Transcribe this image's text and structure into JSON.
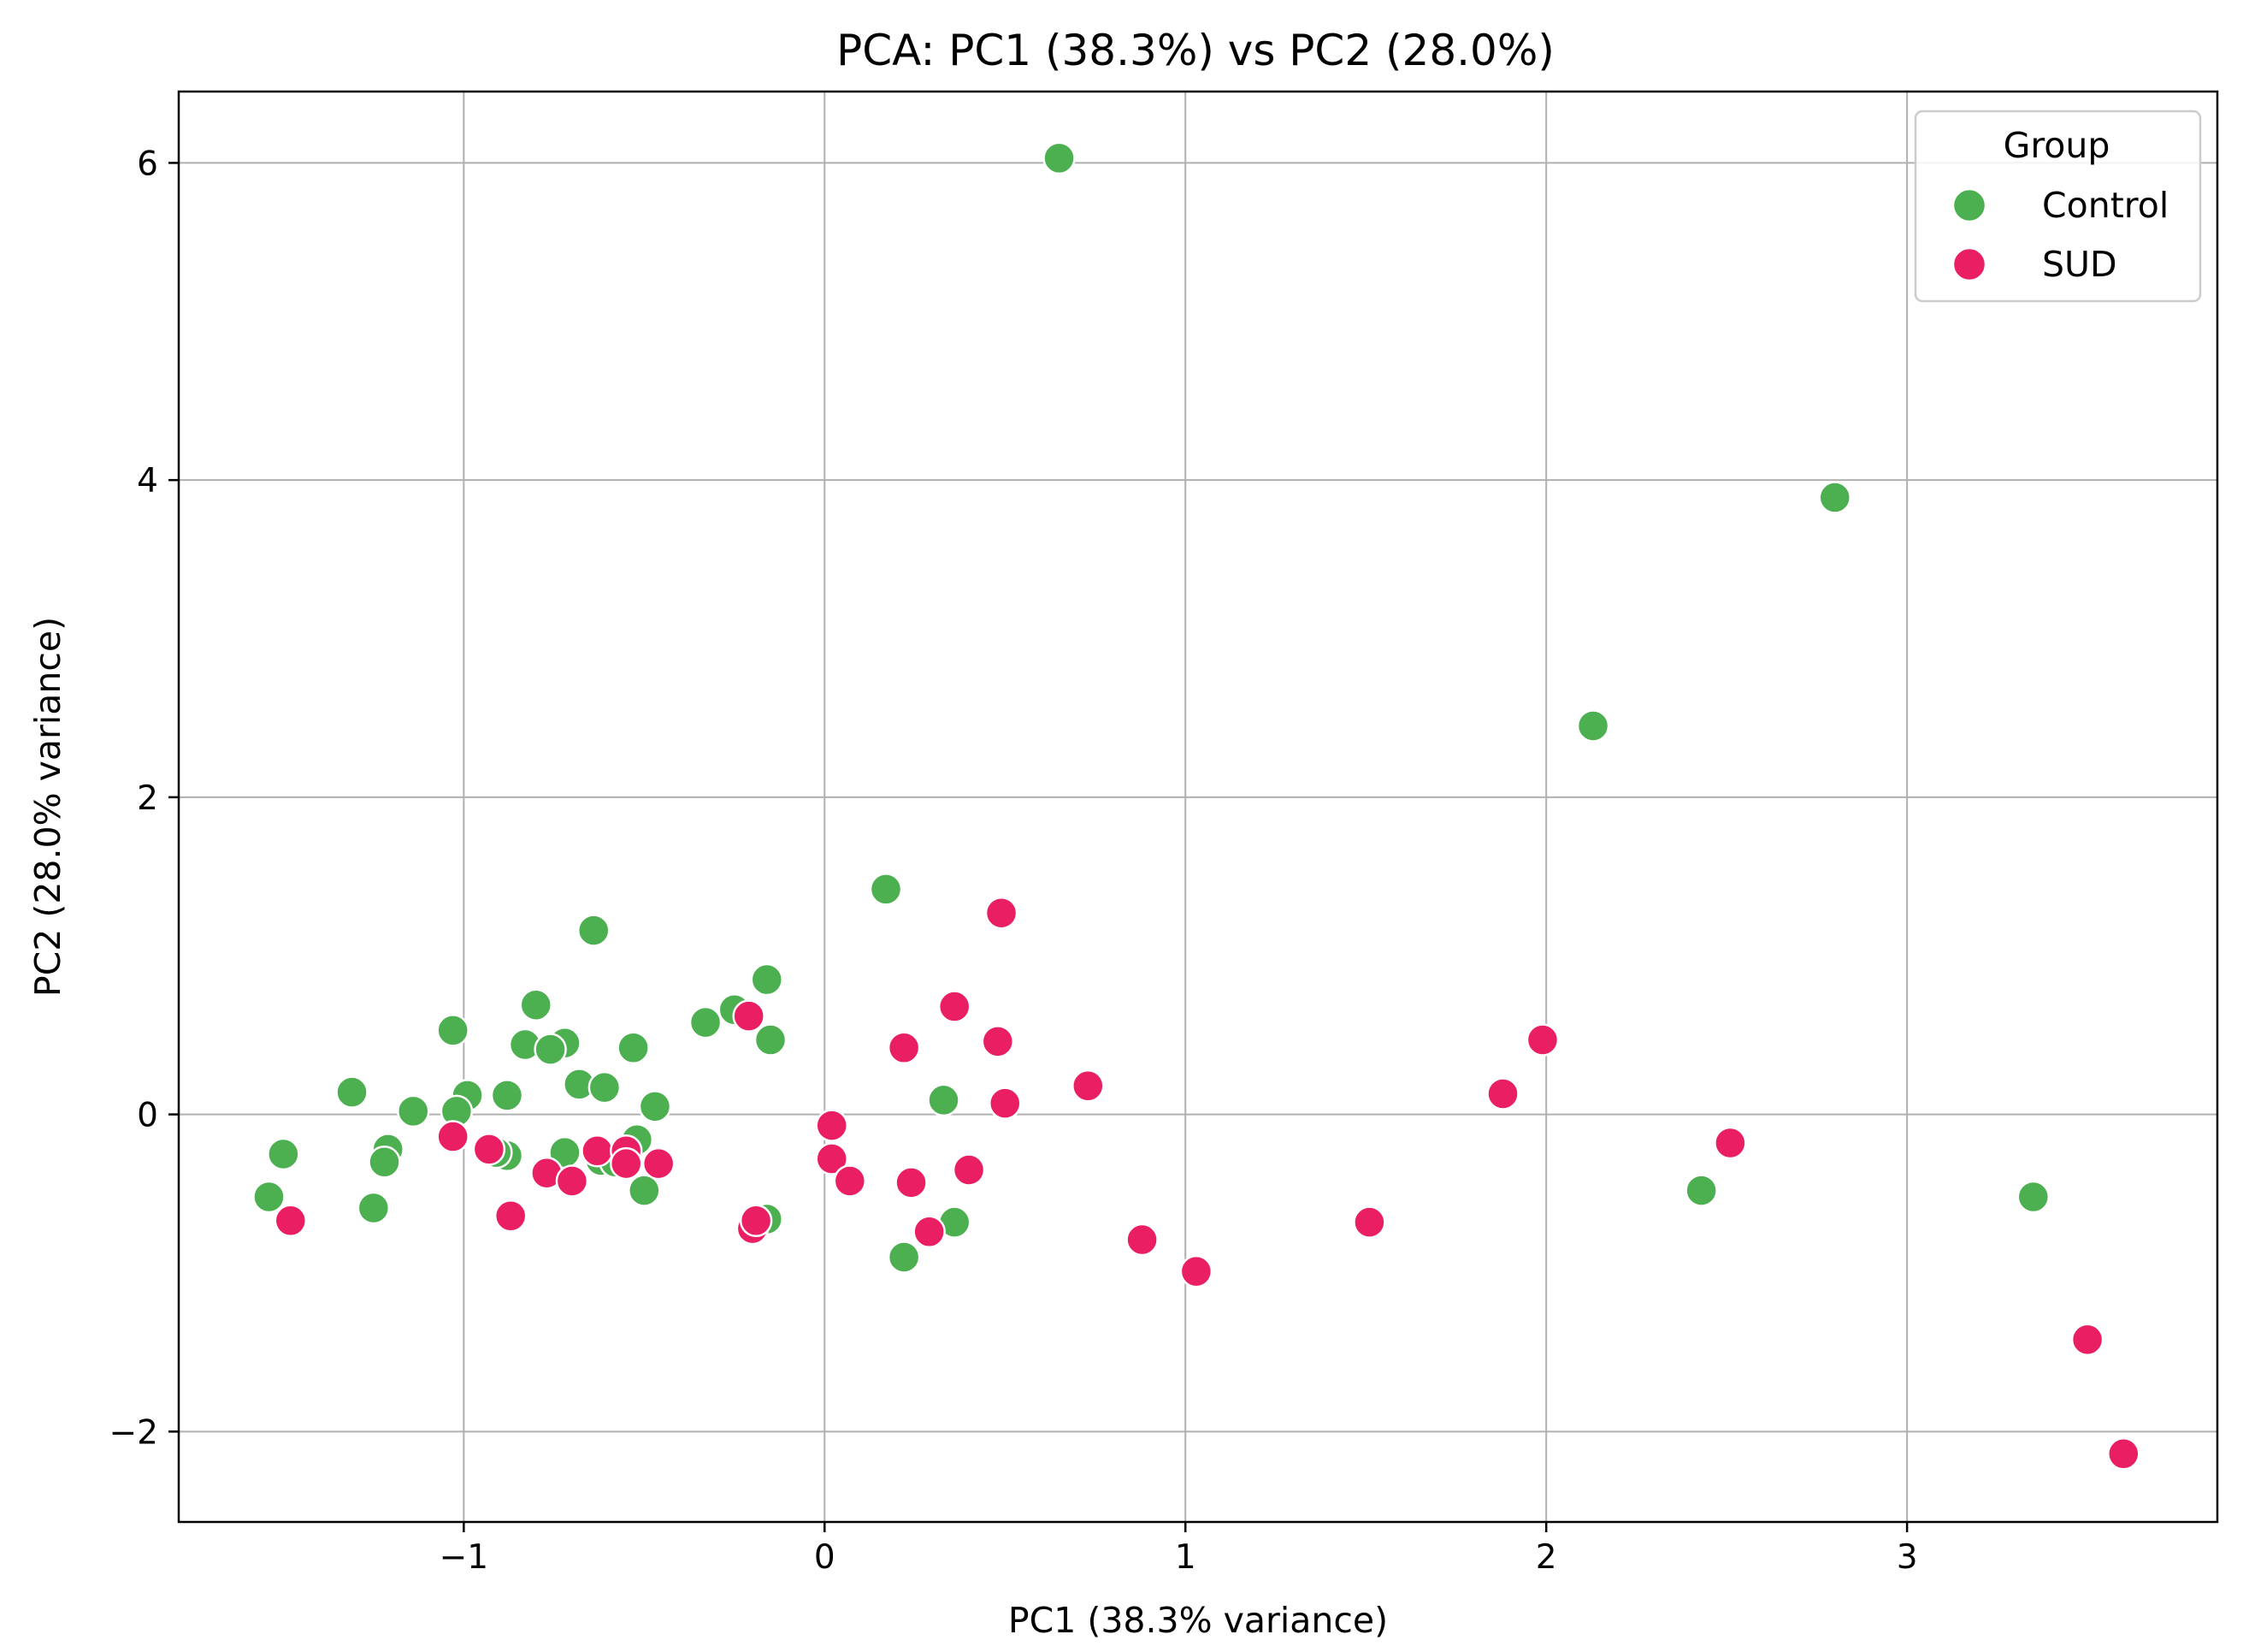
{
  "chart_data": {
    "type": "scatter",
    "title": "PCA: PC1 (38.3%) vs PC2 (28.0%)",
    "xlabel": "PC1 (38.3% variance)",
    "ylabel": "PC2 (28.0% variance)",
    "xlim": [
      -1.79,
      3.86
    ],
    "ylim": [
      -2.57,
      6.45
    ],
    "xticks": [
      -1,
      0,
      1,
      2,
      3
    ],
    "yticks": [
      -2,
      0,
      2,
      4,
      6
    ],
    "xtick_labels": [
      "−1",
      "0",
      "1",
      "2",
      "3"
    ],
    "ytick_labels": [
      "−2",
      "0",
      "2",
      "4",
      "6"
    ],
    "grid": true,
    "legend": {
      "title": "Group",
      "position": "top-right"
    },
    "series": [
      {
        "name": "Control",
        "color": "#4CAF50",
        "points": [
          [
            0.65,
            6.03
          ],
          [
            2.8,
            3.89
          ],
          [
            2.13,
            2.45
          ],
          [
            0.17,
            1.42
          ],
          [
            -0.64,
            1.16
          ],
          [
            -0.16,
            0.85
          ],
          [
            -0.8,
            0.69
          ],
          [
            -0.25,
            0.66
          ],
          [
            -0.33,
            0.58
          ],
          [
            -1.03,
            0.53
          ],
          [
            -0.15,
            0.47
          ],
          [
            -0.83,
            0.44
          ],
          [
            -0.72,
            0.45
          ],
          [
            -0.76,
            0.41
          ],
          [
            -0.53,
            0.42
          ],
          [
            -0.68,
            0.19
          ],
          [
            -0.61,
            0.17
          ],
          [
            -1.31,
            0.14
          ],
          [
            -0.99,
            0.12
          ],
          [
            -0.88,
            0.12
          ],
          [
            0.33,
            0.09
          ],
          [
            -0.47,
            0.05
          ],
          [
            -1.14,
            0.02
          ],
          [
            -1.02,
            0.02
          ],
          [
            -0.52,
            -0.16
          ],
          [
            -1.21,
            -0.22
          ],
          [
            -0.72,
            -0.24
          ],
          [
            -1.5,
            -0.25
          ],
          [
            -0.88,
            -0.26
          ],
          [
            -0.91,
            -0.24
          ],
          [
            -0.62,
            -0.29
          ],
          [
            -1.22,
            -0.3
          ],
          [
            -0.5,
            -0.48
          ],
          [
            2.43,
            -0.48
          ],
          [
            -1.54,
            -0.52
          ],
          [
            3.35,
            -0.52
          ],
          [
            -1.25,
            -0.59
          ],
          [
            -0.16,
            -0.66
          ],
          [
            0.36,
            -0.68
          ],
          [
            0.22,
            -0.9
          ],
          [
            -0.58,
            -0.3
          ]
        ]
      },
      {
        "name": "SUD",
        "color": "#E91E63",
        "points": [
          [
            0.49,
            1.27
          ],
          [
            0.36,
            0.68
          ],
          [
            -0.21,
            0.62
          ],
          [
            1.99,
            0.47
          ],
          [
            0.48,
            0.46
          ],
          [
            0.22,
            0.42
          ],
          [
            0.73,
            0.18
          ],
          [
            1.88,
            0.13
          ],
          [
            0.5,
            0.07
          ],
          [
            0.02,
            -0.07
          ],
          [
            -1.03,
            -0.14
          ],
          [
            2.51,
            -0.18
          ],
          [
            -0.93,
            -0.22
          ],
          [
            -0.63,
            -0.23
          ],
          [
            -0.55,
            -0.23
          ],
          [
            0.02,
            -0.28
          ],
          [
            -0.46,
            -0.31
          ],
          [
            -0.55,
            -0.31
          ],
          [
            0.4,
            -0.35
          ],
          [
            -0.77,
            -0.37
          ],
          [
            -0.7,
            -0.42
          ],
          [
            0.07,
            -0.42
          ],
          [
            0.24,
            -0.43
          ],
          [
            -0.87,
            -0.64
          ],
          [
            -0.2,
            -0.72
          ],
          [
            -0.19,
            -0.67
          ],
          [
            1.51,
            -0.68
          ],
          [
            0.29,
            -0.74
          ],
          [
            -1.48,
            -0.67
          ],
          [
            0.88,
            -0.79
          ],
          [
            1.03,
            -0.99
          ],
          [
            3.5,
            -1.42
          ],
          [
            3.6,
            -2.14
          ]
        ]
      }
    ]
  }
}
